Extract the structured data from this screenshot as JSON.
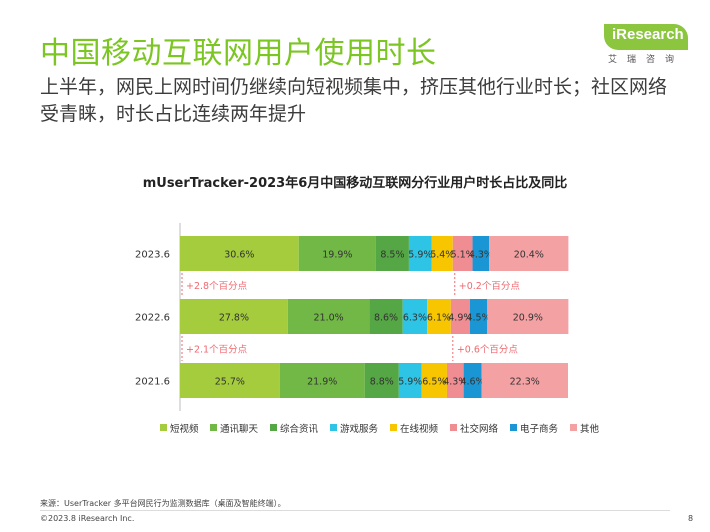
{
  "header": {
    "title": "中国移动互联网用户使用时长",
    "subtitle": "上半年，网民上网时间仍继续向短视频集中，挤压其他行业时长；社区网络受青睐，时长占比连续两年提升"
  },
  "logo": {
    "text": "iResearch",
    "cn": "艾瑞咨询"
  },
  "footer": {
    "source": "来源：UserTracker 多平台网民行为监测数据库（桌面及智能终端）。",
    "copyright": "©2023.8 iResearch Inc.",
    "page": "8"
  },
  "colors": {
    "短视频": "#a4cc3c",
    "通讯聊天": "#72b847",
    "综合资讯": "#55a644",
    "游戏服务": "#2ec4e6",
    "在线视频": "#f7c600",
    "社交网络": "#ef8d93",
    "电子商务": "#1a96d4",
    "其他": "#f4a1a4",
    "annotation": "#ef6a70"
  },
  "chart_data": {
    "type": "bar",
    "orientation": "horizontal",
    "stacked": true,
    "title": "mUserTracker-2023年6月中国移动互联网分行业用户时长占比及同比",
    "categories": [
      "2023.6",
      "2022.6",
      "2021.6"
    ],
    "series": [
      {
        "name": "短视频",
        "values": [
          30.6,
          27.8,
          25.7
        ],
        "labels": [
          "30.6%",
          "27.8%",
          "25.7%"
        ]
      },
      {
        "name": "通讯聊天",
        "values": [
          19.9,
          21.0,
          21.9
        ],
        "labels": [
          "19.9%",
          "21.0%",
          "21.9%"
        ]
      },
      {
        "name": "综合资讯",
        "values": [
          8.5,
          8.6,
          8.8
        ],
        "labels": [
          "8.5%",
          "8.6%",
          "8.8%"
        ]
      },
      {
        "name": "游戏服务",
        "values": [
          5.9,
          6.3,
          5.9
        ],
        "labels": [
          "5.9%",
          "6.3%",
          "5.9%"
        ]
      },
      {
        "name": "在线视频",
        "values": [
          5.4,
          6.1,
          6.5
        ],
        "labels": [
          "5.4%",
          "6.1%",
          "6.5%"
        ]
      },
      {
        "name": "社交网络",
        "values": [
          5.1,
          4.9,
          4.3
        ],
        "labels": [
          "5.1%",
          "4.9%",
          "4.3%"
        ]
      },
      {
        "name": "电子商务",
        "values": [
          4.3,
          4.5,
          4.6
        ],
        "labels": [
          "4.3%",
          "4.5%",
          "4.6%"
        ]
      },
      {
        "name": "其他",
        "values": [
          20.4,
          20.9,
          22.3
        ],
        "labels": [
          "20.4%",
          "20.9%",
          "22.3%"
        ]
      }
    ],
    "annotations": [
      {
        "between": [
          "2023.6",
          "2022.6"
        ],
        "series": "短视频",
        "text": "+2.8个百分点"
      },
      {
        "between": [
          "2023.6",
          "2022.6"
        ],
        "series": "社交网络",
        "text": "+0.2个百分点"
      },
      {
        "between": [
          "2022.6",
          "2021.6"
        ],
        "series": "短视频",
        "text": "+2.1个百分点"
      },
      {
        "between": [
          "2022.6",
          "2021.6"
        ],
        "series": "社交网络",
        "text": "+0.6个百分点"
      }
    ],
    "xlim": [
      0,
      100
    ],
    "legend": "bottom",
    "grid": false
  }
}
